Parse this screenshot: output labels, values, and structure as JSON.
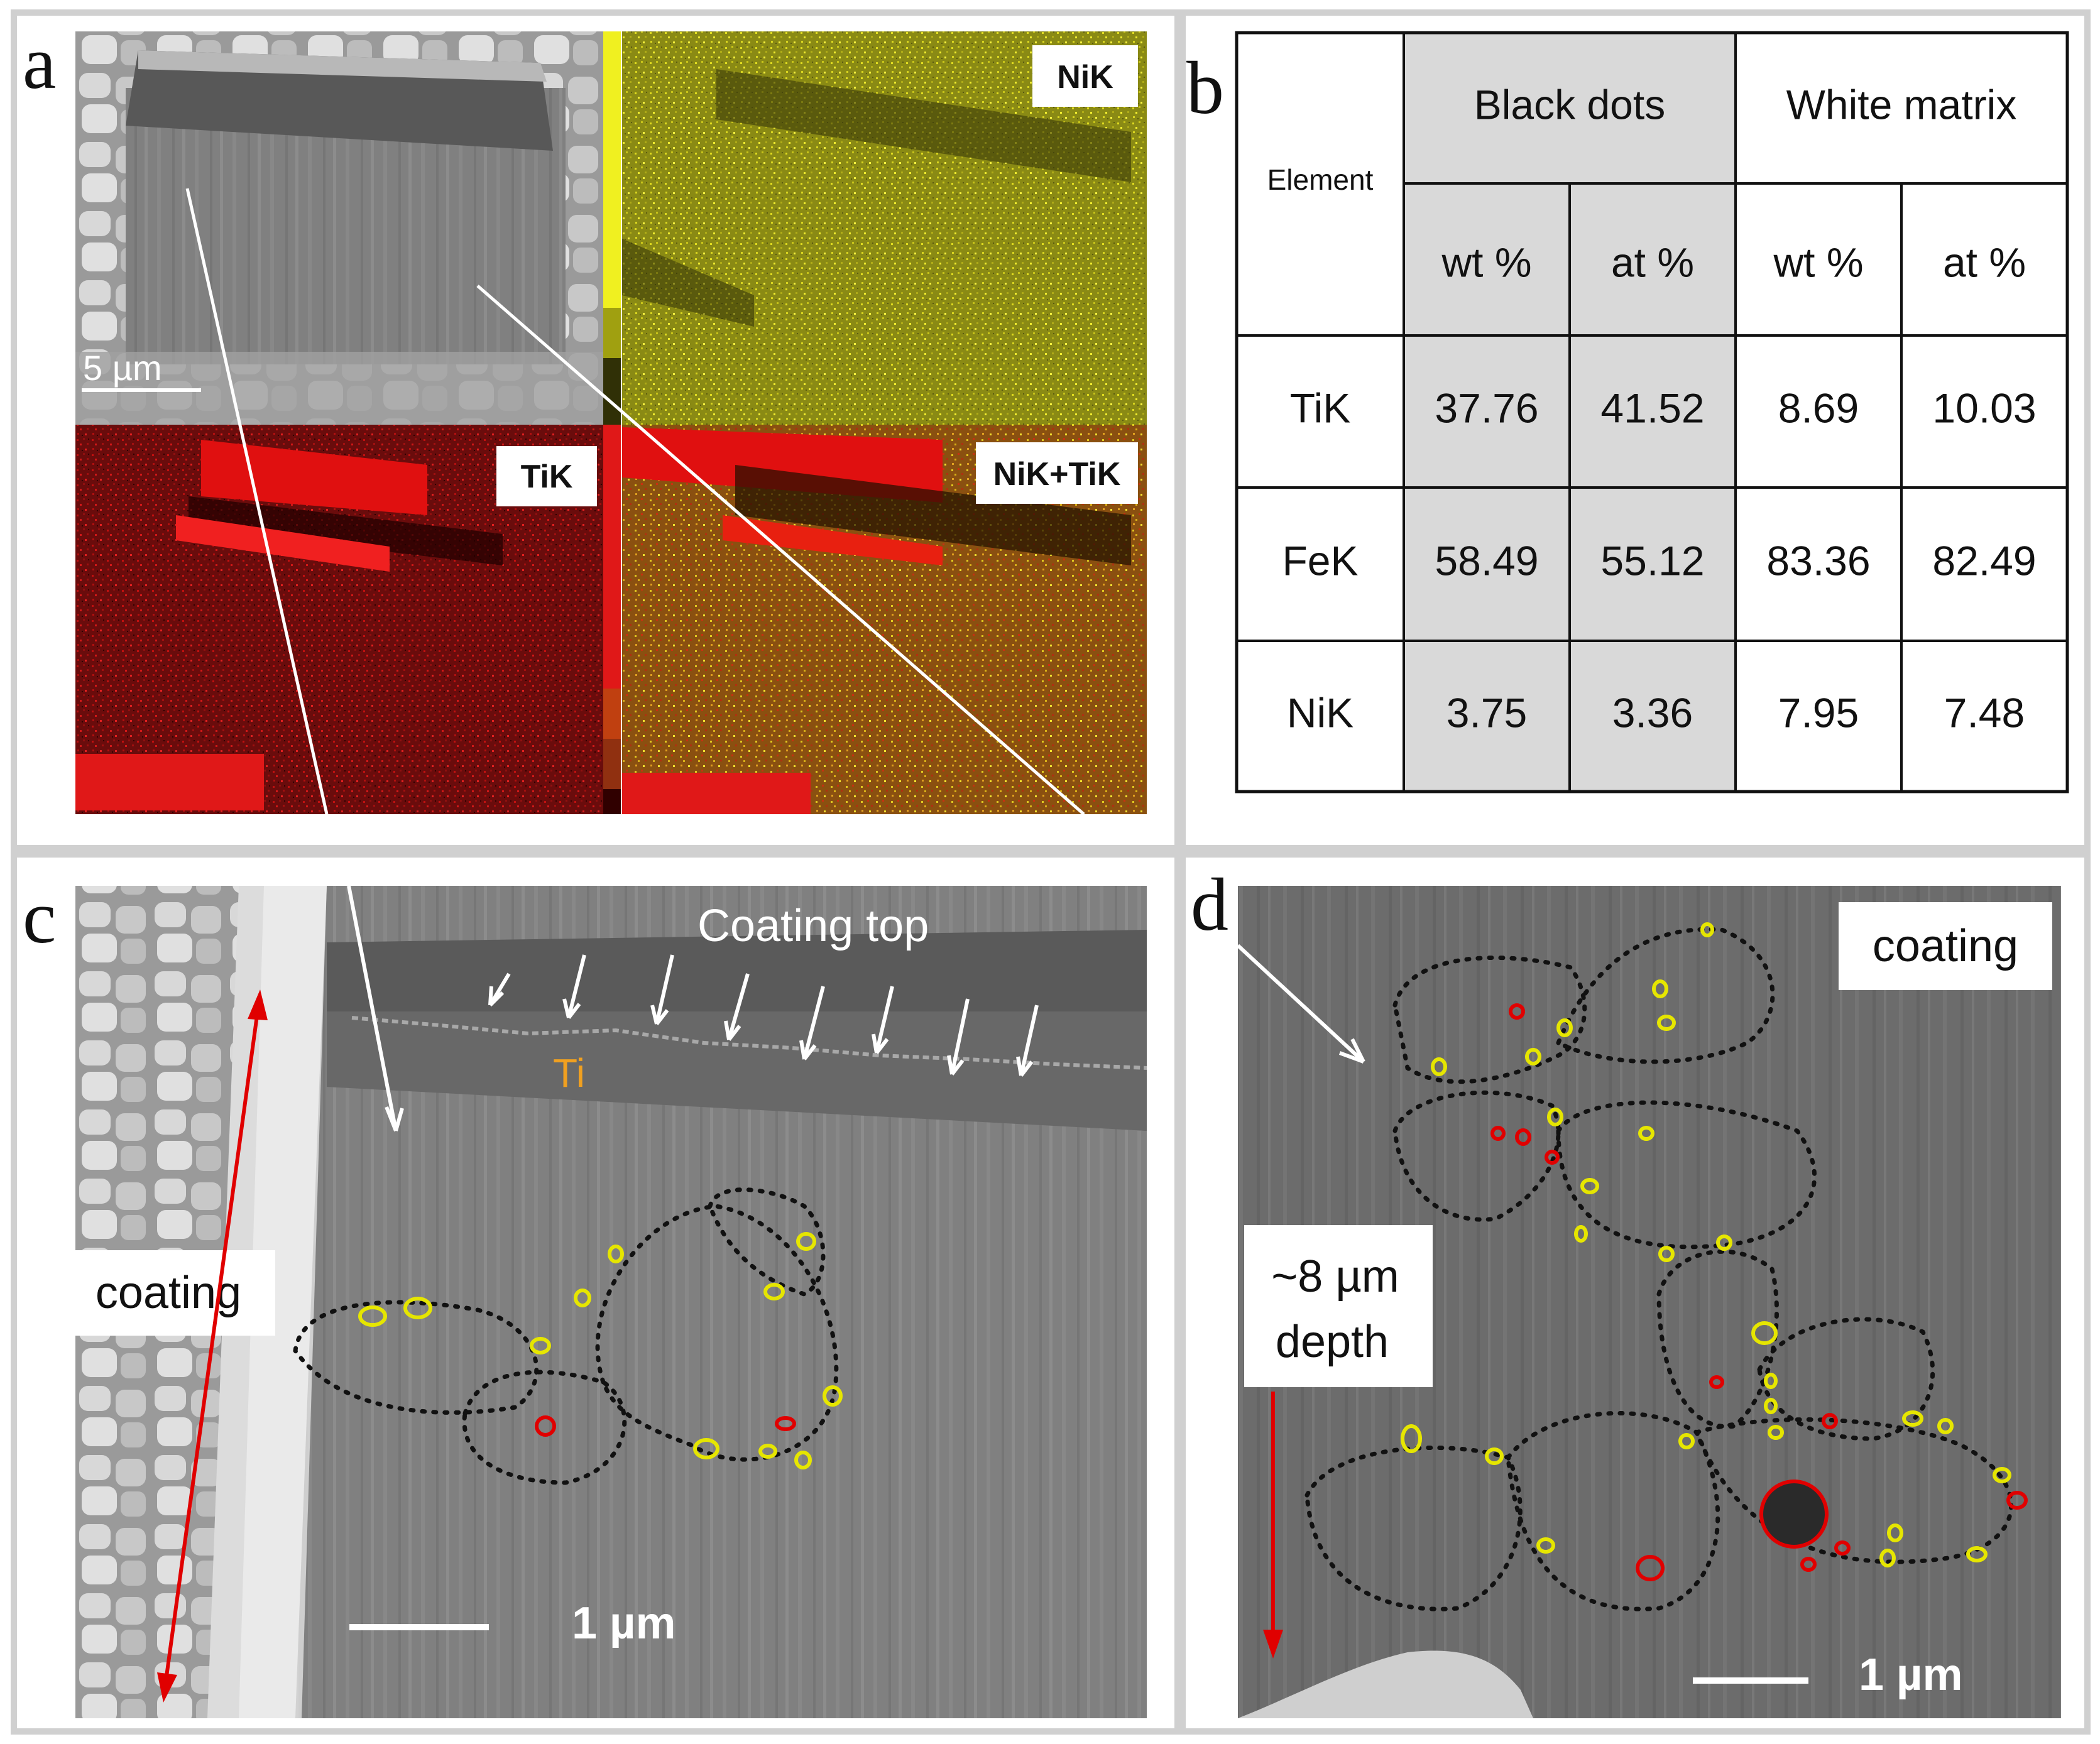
{
  "panel_a": {
    "letter": "a",
    "scale_bar": "5 µm",
    "maps": {
      "ni": "NiK",
      "ti": "TiK",
      "overlay": "NiK+TiK"
    }
  },
  "panel_b": {
    "letter": "b",
    "table": {
      "corner_header": "Element",
      "group_headers": [
        "Black dots",
        "White matrix"
      ],
      "sub_headers": [
        "wt %",
        "at %",
        "wt %",
        "at %"
      ],
      "rows": [
        {
          "element": "TiK",
          "values": [
            "37.76",
            "41.52",
            "8.69",
            "10.03"
          ]
        },
        {
          "element": "FeK",
          "values": [
            "58.49",
            "55.12",
            "83.36",
            "82.49"
          ]
        },
        {
          "element": "NiK",
          "values": [
            "3.75",
            "3.36",
            "7.95",
            "7.48"
          ]
        }
      ],
      "highlight_color": "#d9d9d9"
    }
  },
  "panel_c": {
    "letter": "c",
    "coating_top": "Coating top",
    "ti_label": "Ti",
    "coating_label": "coating",
    "scale_bar": "1 µm"
  },
  "panel_d": {
    "letter": "d",
    "coating_label": "coating",
    "depth_line1": "~8 µm",
    "depth_line2": "depth",
    "scale_bar": "1 µm"
  },
  "colors": {
    "border": "#d0d0d0",
    "ni_map": "#c8c41a",
    "ti_map": "#d40000",
    "outline_yellow": "#e6e600",
    "outline_red": "#e00000",
    "arrow_red": "#e00000",
    "ti_text": "#f0a020"
  }
}
